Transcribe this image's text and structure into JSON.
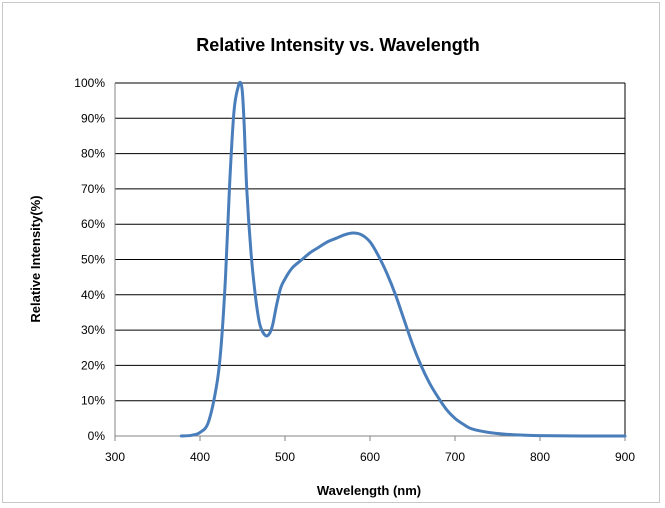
{
  "chart_data": {
    "type": "line",
    "title": "Relative Intensity vs. Wavelength",
    "xlabel": "Wavelength (nm)",
    "ylabel": "Relative Intensity(%)",
    "xlim": [
      300,
      900
    ],
    "ylim": [
      0,
      100
    ],
    "x_ticks": [
      "300",
      "400",
      "500",
      "600",
      "700",
      "800",
      "900"
    ],
    "y_ticks": [
      "0%",
      "10%",
      "20%",
      "30%",
      "40%",
      "50%",
      "60%",
      "70%",
      "80%",
      "90%",
      "100%"
    ],
    "grid": "horizontal",
    "colors": {
      "series": "#4a7ebb",
      "grid": "#000000",
      "axis": "#868686"
    },
    "series": [
      {
        "x": [
          378,
          390,
          400,
          410,
          420,
          425,
          430,
          435,
          440,
          445,
          448,
          450,
          452,
          455,
          460,
          465,
          470,
          475,
          480,
          485,
          490,
          495,
          500,
          505,
          510,
          520,
          530,
          540,
          550,
          560,
          570,
          580,
          590,
          600,
          610,
          620,
          630,
          640,
          650,
          660,
          670,
          680,
          690,
          700,
          710,
          720,
          740,
          760,
          780,
          800,
          850,
          900
        ],
        "y": [
          0,
          0.2,
          1,
          4,
          15,
          26,
          45,
          72,
          92,
          99,
          100,
          97,
          88,
          70,
          52,
          40,
          32,
          29,
          28.5,
          31,
          37,
          42,
          44.5,
          46.5,
          48,
          50,
          52,
          53.5,
          55,
          56,
          57,
          57.5,
          57,
          55,
          51,
          46,
          40,
          33,
          26,
          20,
          15,
          11,
          7.5,
          5,
          3.3,
          2,
          1,
          0.5,
          0.25,
          0.1,
          0,
          0
        ]
      }
    ]
  }
}
